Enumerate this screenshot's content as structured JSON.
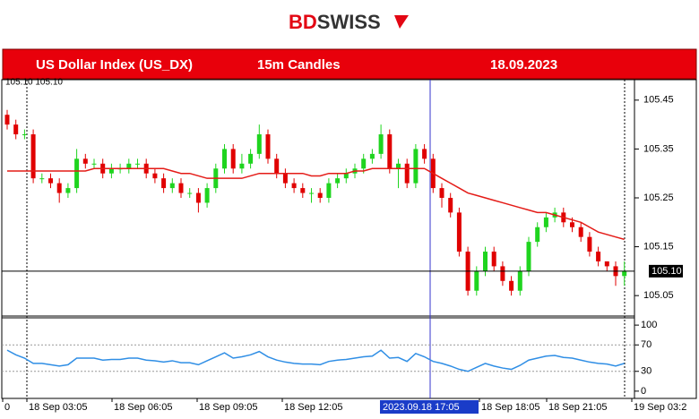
{
  "brand": [
    "BD",
    "SWISS"
  ],
  "header": {
    "title": "US Dollar Index (US_DX)",
    "timeframe": "15m Candles",
    "date": "18.09.2023"
  },
  "chart_data": [
    {
      "type": "candlestick",
      "info": "105.10 105.10",
      "up_color": "#1fd41f",
      "down_color": "#e00000",
      "open": [
        105.42,
        105.4,
        105.38,
        105.38,
        105.29,
        105.29,
        105.28,
        105.26,
        105.27,
        105.33,
        105.32,
        105.32,
        105.3,
        105.31,
        105.31,
        105.32,
        105.32,
        105.3,
        105.29,
        105.27,
        105.28,
        105.26,
        105.26,
        105.24,
        105.27,
        105.31,
        105.35,
        105.31,
        105.32,
        105.34,
        105.38,
        105.33,
        105.3,
        105.28,
        105.27,
        105.26,
        105.26,
        105.25,
        105.28,
        105.29,
        105.3,
        105.31,
        105.33,
        105.34,
        105.38,
        105.31,
        105.32,
        105.28,
        105.35,
        105.33,
        105.27,
        105.25,
        105.22,
        105.14,
        105.06,
        105.1,
        105.14,
        105.11,
        105.08,
        105.06,
        105.1,
        105.16,
        105.19,
        105.21,
        105.22,
        105.2,
        105.19,
        105.17,
        105.14,
        105.12,
        105.11,
        105.09
      ],
      "high": [
        105.43,
        105.41,
        105.39,
        105.39,
        105.3,
        105.3,
        105.29,
        105.28,
        105.35,
        105.34,
        105.33,
        105.33,
        105.32,
        105.32,
        105.33,
        105.33,
        105.33,
        105.31,
        105.3,
        105.29,
        105.29,
        105.27,
        105.27,
        105.28,
        105.32,
        105.36,
        105.36,
        105.34,
        105.35,
        105.4,
        105.39,
        105.34,
        105.31,
        105.29,
        105.28,
        105.27,
        105.27,
        105.29,
        105.3,
        105.31,
        105.32,
        105.34,
        105.35,
        105.4,
        105.39,
        105.33,
        105.33,
        105.36,
        105.36,
        105.34,
        105.28,
        105.26,
        105.23,
        105.15,
        105.11,
        105.15,
        105.15,
        105.12,
        105.09,
        105.11,
        105.17,
        105.2,
        105.22,
        105.23,
        105.23,
        105.21,
        105.2,
        105.18,
        105.15,
        105.12,
        105.12,
        105.12
      ],
      "low": [
        105.39,
        105.37,
        105.37,
        105.28,
        105.28,
        105.27,
        105.24,
        105.25,
        105.26,
        105.31,
        105.31,
        105.29,
        105.29,
        105.3,
        105.3,
        105.31,
        105.29,
        105.28,
        105.26,
        105.26,
        105.25,
        105.25,
        105.22,
        105.23,
        105.26,
        105.3,
        105.3,
        105.3,
        105.31,
        105.33,
        105.32,
        105.29,
        105.27,
        105.26,
        105.25,
        105.24,
        105.24,
        105.24,
        105.27,
        105.28,
        105.29,
        105.3,
        105.32,
        105.33,
        105.3,
        105.27,
        105.27,
        105.27,
        105.32,
        105.26,
        105.23,
        105.21,
        105.13,
        105.05,
        105.05,
        105.09,
        105.1,
        105.07,
        105.05,
        105.05,
        105.09,
        105.15,
        105.18,
        105.2,
        105.19,
        105.18,
        105.16,
        105.13,
        105.11,
        105.1,
        105.07,
        105.07
      ],
      "close": [
        105.4,
        105.38,
        105.38,
        105.29,
        105.29,
        105.28,
        105.26,
        105.27,
        105.33,
        105.32,
        105.32,
        105.3,
        105.31,
        105.31,
        105.32,
        105.32,
        105.3,
        105.29,
        105.27,
        105.28,
        105.26,
        105.26,
        105.24,
        105.27,
        105.31,
        105.35,
        105.31,
        105.32,
        105.34,
        105.38,
        105.33,
        105.3,
        105.28,
        105.27,
        105.26,
        105.26,
        105.25,
        105.28,
        105.29,
        105.3,
        105.31,
        105.33,
        105.34,
        105.38,
        105.31,
        105.32,
        105.28,
        105.35,
        105.33,
        105.27,
        105.25,
        105.22,
        105.14,
        105.06,
        105.1,
        105.14,
        105.11,
        105.08,
        105.06,
        105.1,
        105.16,
        105.19,
        105.21,
        105.22,
        105.2,
        105.19,
        105.17,
        105.14,
        105.12,
        105.11,
        105.09,
        105.1
      ],
      "ma": {
        "color": "#e41b17",
        "values": [
          105.305,
          105.305,
          105.305,
          105.305,
          105.305,
          105.305,
          105.305,
          105.305,
          105.305,
          105.305,
          105.31,
          105.31,
          105.31,
          105.31,
          105.31,
          105.31,
          105.31,
          105.31,
          105.31,
          105.305,
          105.3,
          105.3,
          105.295,
          105.29,
          105.29,
          105.29,
          105.29,
          105.29,
          105.295,
          105.3,
          105.3,
          105.3,
          105.3,
          105.3,
          105.3,
          105.295,
          105.295,
          105.3,
          105.3,
          105.3,
          105.305,
          105.305,
          105.31,
          105.31,
          105.31,
          105.31,
          105.31,
          105.31,
          105.31,
          105.3,
          105.29,
          105.28,
          105.27,
          105.26,
          105.255,
          105.25,
          105.245,
          105.24,
          105.235,
          105.23,
          105.225,
          105.22,
          105.22,
          105.215,
          105.21,
          105.205,
          105.2,
          105.19,
          105.18,
          105.175,
          105.17,
          105.165
        ]
      },
      "last_price": {
        "value": 105.1,
        "label": "105.10"
      },
      "ylim": [
        105.01,
        105.49
      ],
      "yticks": [
        105.45,
        105.35,
        105.25,
        105.15,
        105.05
      ]
    },
    {
      "type": "line",
      "color": "#2f8ee5",
      "values": [
        62,
        55,
        50,
        42,
        42,
        40,
        38,
        40,
        50,
        50,
        50,
        47,
        48,
        48,
        50,
        50,
        47,
        46,
        44,
        46,
        43,
        43,
        40,
        46,
        52,
        58,
        50,
        52,
        55,
        60,
        52,
        47,
        44,
        42,
        41,
        41,
        40,
        45,
        47,
        48,
        50,
        52,
        53,
        62,
        50,
        51,
        45,
        57,
        52,
        45,
        42,
        38,
        33,
        30,
        36,
        42,
        38,
        35,
        33,
        39,
        47,
        50,
        53,
        54,
        51,
        50,
        47,
        44,
        42,
        41,
        38,
        42
      ],
      "ylim": [
        -11,
        111
      ],
      "yticks": [
        100,
        70,
        30,
        0
      ],
      "levels": [
        70,
        30
      ]
    }
  ],
  "x_labels": [
    "0",
    "18 Sep 03:05",
    "18 Sep 06:05",
    "18 Sep 09:05",
    "18 Sep 12:05",
    "18 Sep 18:05",
    "18 Sep 21:05",
    "19 Sep 03:2"
  ],
  "cursor_label": "2023.09.18 17:05"
}
